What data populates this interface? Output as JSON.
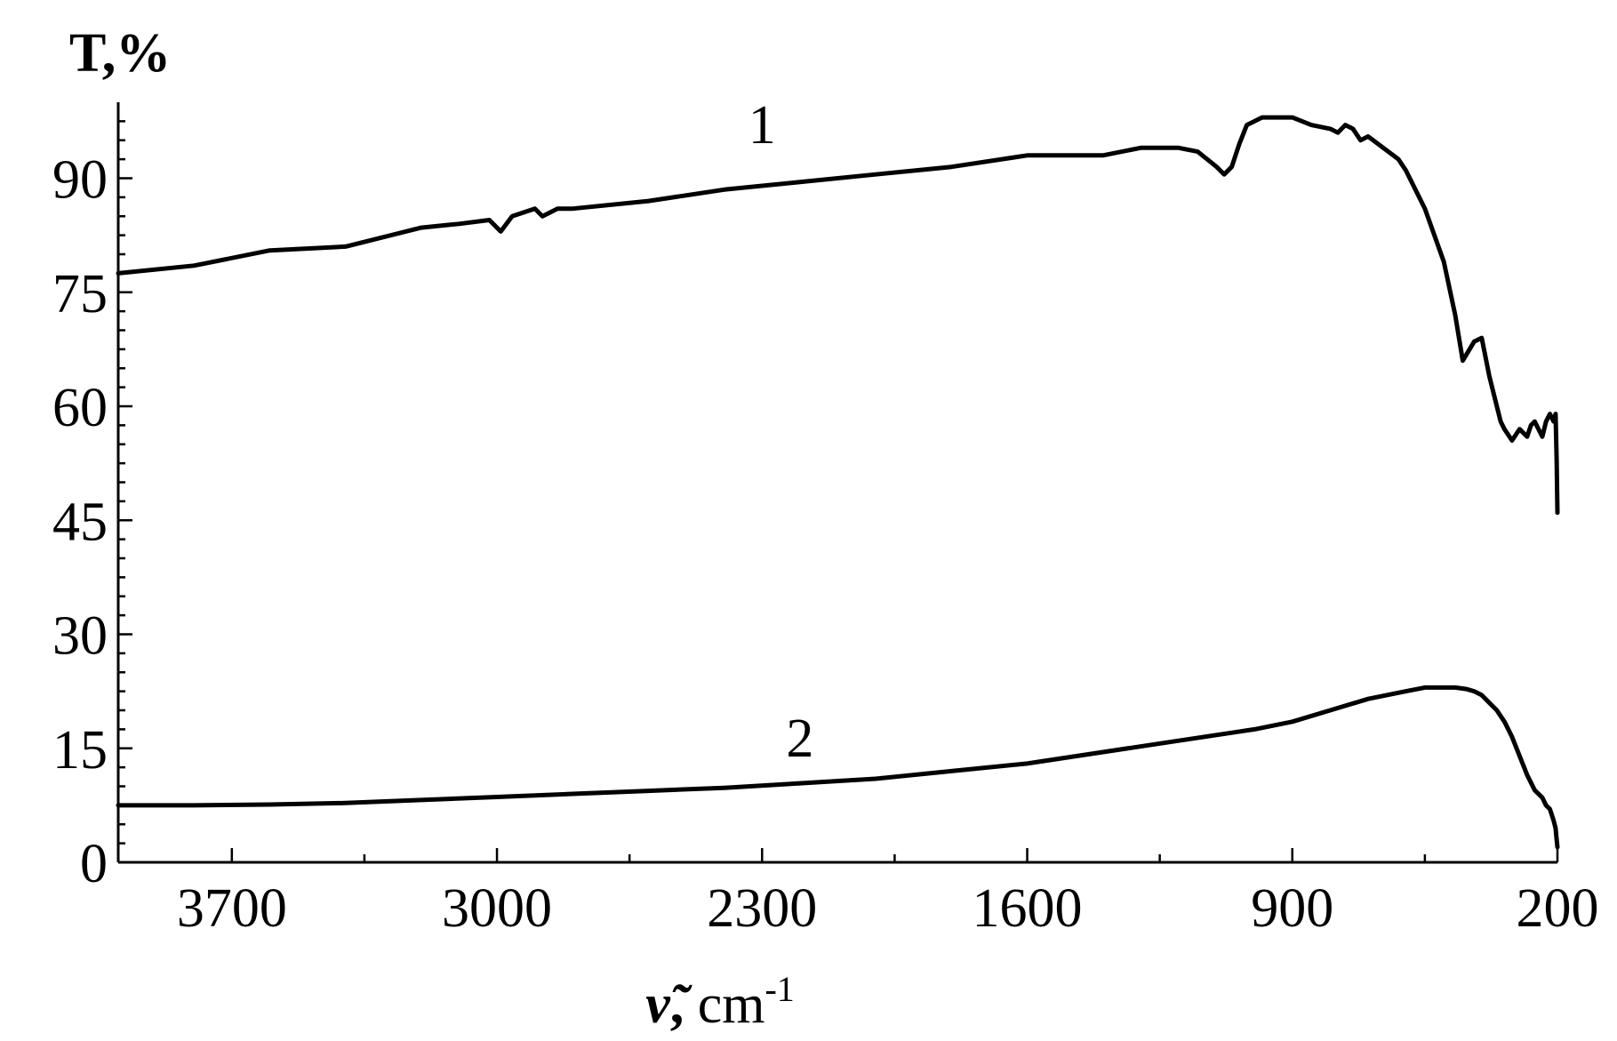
{
  "chart_data": {
    "type": "line",
    "title": "",
    "ylabel": "T,%",
    "xlabel_symbol": "ν̃",
    "xlabel_sep": ",",
    "xlabel_unit": " cm",
    "xlabel_unit_exp": "-1",
    "xlim": [
      4000,
      200
    ],
    "ylim": [
      0,
      100
    ],
    "x_ticks": [
      3700,
      3000,
      2300,
      1600,
      900,
      200
    ],
    "x_tick_labels": [
      "3700",
      "3000",
      "2300",
      "1600",
      "900",
      "200"
    ],
    "y_ticks": [
      0,
      15,
      30,
      45,
      60,
      75,
      90
    ],
    "y_tick_labels": [
      "0",
      "15",
      "30",
      "45",
      "60",
      "75",
      "90"
    ],
    "grid": false,
    "series": [
      {
        "name": "1",
        "x": [
          4000,
          3800,
          3600,
          3400,
          3200,
          3100,
          3020,
          2990,
          2960,
          2930,
          2900,
          2880,
          2860,
          2840,
          2800,
          2600,
          2400,
          2200,
          2000,
          1800,
          1600,
          1400,
          1300,
          1200,
          1150,
          1100,
          1080,
          1060,
          1040,
          1020,
          1000,
          980,
          960,
          900,
          850,
          800,
          780,
          760,
          740,
          720,
          700,
          660,
          620,
          600,
          550,
          500,
          470,
          450,
          420,
          400,
          380,
          365,
          350,
          340,
          320,
          300,
          280,
          270,
          260,
          250,
          240,
          230,
          220,
          210,
          205,
          202,
          200
        ],
        "y": [
          77.5,
          78.5,
          80.5,
          81,
          83.5,
          84,
          84.5,
          83,
          85,
          85.5,
          86,
          85,
          85.5,
          86,
          86,
          87,
          88.5,
          89.5,
          90.5,
          91.5,
          93,
          93,
          94,
          94,
          93.5,
          91.5,
          90.5,
          91.5,
          94.5,
          97,
          97.5,
          98,
          98,
          98,
          97,
          96.5,
          96,
          97,
          96.5,
          95,
          95.5,
          94,
          92.5,
          91,
          86,
          79,
          72,
          66,
          68.5,
          69,
          64,
          61,
          58,
          57,
          55.5,
          57,
          56,
          57.5,
          58,
          57,
          56,
          58,
          59,
          58,
          59,
          53,
          46
        ]
      },
      {
        "name": "2",
        "x": [
          4000,
          3800,
          3600,
          3400,
          3200,
          3000,
          2800,
          2600,
          2400,
          2200,
          2000,
          1800,
          1600,
          1400,
          1200,
          1000,
          900,
          800,
          700,
          600,
          550,
          500,
          470,
          440,
          420,
          400,
          380,
          360,
          340,
          320,
          300,
          280,
          260,
          240,
          230,
          220,
          210,
          205,
          202,
          200
        ],
        "y": [
          7.5,
          7.5,
          7.6,
          7.8,
          8.2,
          8.6,
          9,
          9.4,
          9.8,
          10.4,
          11,
          12,
          13,
          14.5,
          16,
          17.5,
          18.5,
          20,
          21.5,
          22.5,
          23,
          23,
          23,
          22.8,
          22.5,
          22,
          21,
          20,
          18.5,
          16.5,
          14,
          11.5,
          9.5,
          8.5,
          7.5,
          7,
          5.5,
          4.5,
          3,
          2
        ]
      }
    ]
  }
}
